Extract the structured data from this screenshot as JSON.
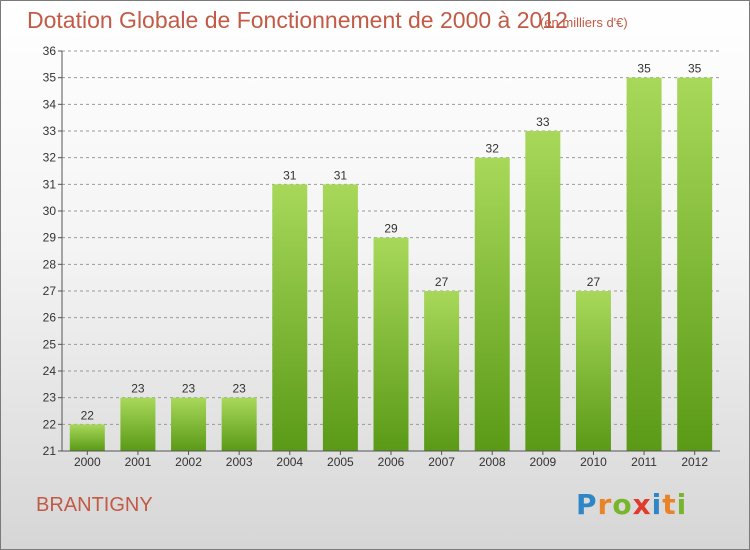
{
  "title": "Dotation Globale de Fonctionnement de 2000 à 2012",
  "unit_note": "(en milliers d'€)",
  "commune": "BRANTIGNY",
  "logo": {
    "letters": [
      "P",
      "r",
      "o",
      "x",
      "i",
      "t",
      "i"
    ],
    "colors": [
      "#2f86c6",
      "#e8832a",
      "#78b52c",
      "#e23a2a",
      "#2f86c6",
      "#e8832a",
      "#78b52c"
    ]
  },
  "colors": {
    "bar_top": "#a8d85a",
    "bar_bottom": "#5a9a16",
    "grid": "#9a9a9a",
    "title": "#c25a46"
  },
  "chart_data": {
    "type": "bar",
    "title": "Dotation Globale de Fonctionnement de 2000 à 2012",
    "subtitle": "(en milliers d'€)",
    "categories": [
      "2000",
      "2001",
      "2002",
      "2003",
      "2004",
      "2005",
      "2006",
      "2007",
      "2008",
      "2009",
      "2010",
      "2011",
      "2012"
    ],
    "values": [
      22,
      23,
      23,
      23,
      31,
      31,
      29,
      27,
      32,
      33,
      27,
      35,
      35
    ],
    "ylim": [
      21,
      36
    ],
    "yticks": [
      21,
      22,
      23,
      24,
      25,
      26,
      27,
      28,
      29,
      30,
      31,
      32,
      33,
      34,
      35,
      36
    ],
    "grid": true,
    "xlabel": "",
    "ylabel": ""
  }
}
